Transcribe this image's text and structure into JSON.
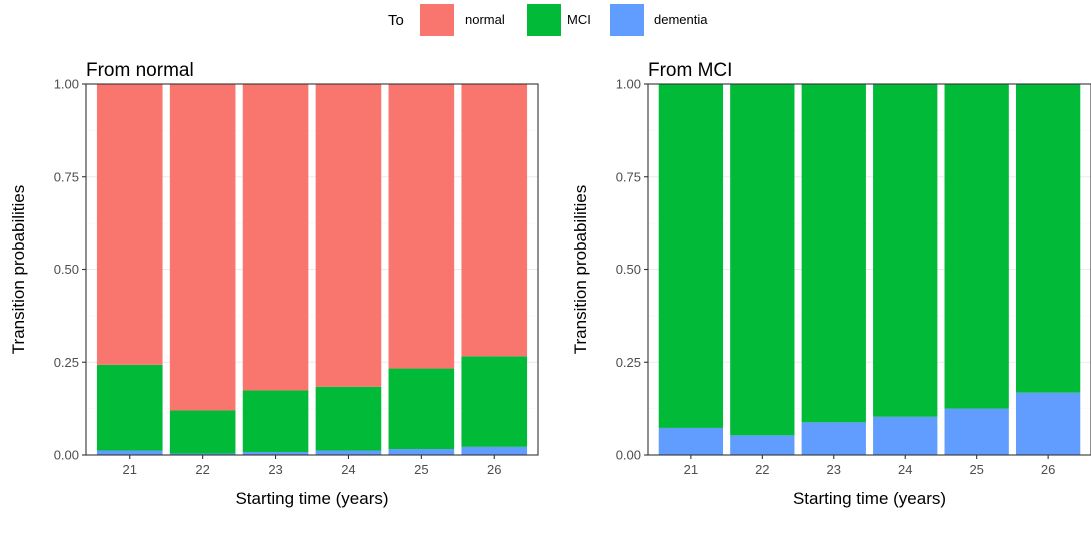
{
  "legend": {
    "title": "To",
    "entries": [
      {
        "label": "normal",
        "color": "#F8766D"
      },
      {
        "label": "MCI",
        "color": "#00BA38"
      },
      {
        "label": "dementia",
        "color": "#619CFF"
      }
    ]
  },
  "chart_data": [
    {
      "type": "bar",
      "stacked": true,
      "title": "From normal",
      "xlabel": "Starting time (years)",
      "ylabel": "Transition probabilities",
      "ylim": [
        0,
        1
      ],
      "yticks": [
        "0.00",
        "0.25",
        "0.50",
        "0.75",
        "1.00"
      ],
      "categories": [
        "21",
        "22",
        "23",
        "24",
        "25",
        "26"
      ],
      "grid": true,
      "series": [
        {
          "name": "dementia",
          "color": "#619CFF",
          "values": [
            0.012,
            0.004,
            0.008,
            0.012,
            0.016,
            0.022
          ]
        },
        {
          "name": "MCI",
          "color": "#00BA38",
          "values": [
            0.231,
            0.116,
            0.166,
            0.172,
            0.217,
            0.244
          ]
        },
        {
          "name": "normal",
          "color": "#F8766D",
          "values": [
            0.757,
            0.88,
            0.826,
            0.816,
            0.767,
            0.734
          ]
        }
      ]
    },
    {
      "type": "bar",
      "stacked": true,
      "title": "From MCI",
      "xlabel": "Starting time (years)",
      "ylabel": "Transition probabilities",
      "ylim": [
        0,
        1
      ],
      "yticks": [
        "0.00",
        "0.25",
        "0.50",
        "0.75",
        "1.00"
      ],
      "categories": [
        "21",
        "22",
        "23",
        "24",
        "25",
        "26"
      ],
      "grid": true,
      "series": [
        {
          "name": "dementia",
          "color": "#619CFF",
          "values": [
            0.073,
            0.053,
            0.088,
            0.103,
            0.125,
            0.168
          ]
        },
        {
          "name": "MCI",
          "color": "#00BA38",
          "values": [
            0.927,
            0.947,
            0.912,
            0.897,
            0.875,
            0.832
          ]
        }
      ]
    }
  ]
}
